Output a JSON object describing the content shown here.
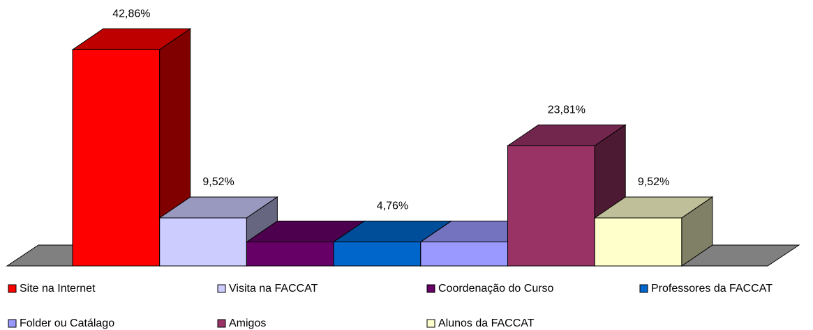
{
  "chart_data": {
    "type": "bar3d",
    "categories": [
      "Site na Internet",
      "Visita na FACCAT",
      "Coordenação do Curso",
      "Professores da FACCAT",
      "Folder ou Catálago",
      "Amigos",
      "Alunos da FACCAT"
    ],
    "values": [
      42.86,
      9.52,
      4.76,
      4.76,
      4.76,
      23.81,
      9.52
    ],
    "value_labels": [
      "42,86%",
      "9,52%",
      null,
      "4,76%",
      null,
      "23,81%",
      "9,52%"
    ],
    "colors": [
      "#ff0000",
      "#ccccff",
      "#660066",
      "#0066cc",
      "#9999ff",
      "#993366",
      "#ffffcc"
    ]
  }
}
